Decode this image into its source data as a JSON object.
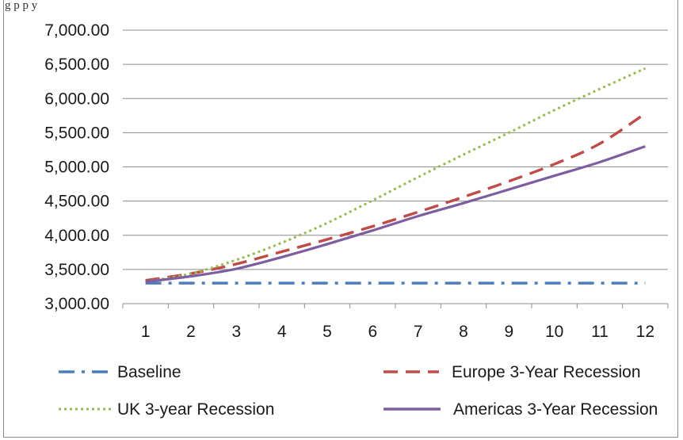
{
  "header": {
    "cropped_caption": "g                                                    p             p                        y"
  },
  "chart_data": {
    "type": "line",
    "title": "",
    "xlabel": "",
    "ylabel": "",
    "x": [
      1,
      2,
      3,
      4,
      5,
      6,
      7,
      8,
      9,
      10,
      11,
      12
    ],
    "ylim": [
      3000,
      7000
    ],
    "y_ticks": [
      3000,
      3500,
      4000,
      4500,
      5000,
      5500,
      6000,
      6500,
      7000
    ],
    "y_tick_labels": [
      "3,000.00",
      "3,500.00",
      "4,000.00",
      "4,500.00",
      "5,000.00",
      "5,500.00",
      "6,000.00",
      "6,500.00",
      "7,000.00"
    ],
    "grid": "horizontal",
    "legend_position": "bottom",
    "series": [
      {
        "name": "Baseline",
        "color": "#4a7ebb",
        "style": "dash-dot",
        "values": [
          3300,
          3300,
          3300,
          3300,
          3300,
          3300,
          3300,
          3300,
          3300,
          3300,
          3300,
          3300
        ]
      },
      {
        "name": "Europe 3-Year Recession",
        "color": "#be4b48",
        "style": "dashed",
        "values": [
          3340,
          3440,
          3580,
          3760,
          3940,
          4130,
          4340,
          4560,
          4790,
          5040,
          5340,
          5780
        ]
      },
      {
        "name": "UK 3-year Recession",
        "color": "#98b954",
        "style": "dotted",
        "values": [
          3320,
          3440,
          3640,
          3890,
          4180,
          4510,
          4850,
          5180,
          5500,
          5830,
          6140,
          6440
        ]
      },
      {
        "name": "Americas 3-Year Recession",
        "color": "#7d5fa0",
        "style": "solid",
        "values": [
          3320,
          3400,
          3510,
          3680,
          3870,
          4070,
          4280,
          4470,
          4670,
          4870,
          5070,
          5300
        ]
      }
    ]
  }
}
